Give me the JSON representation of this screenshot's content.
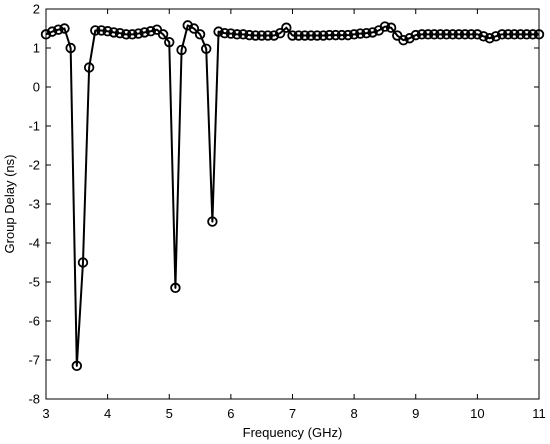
{
  "chart_data": {
    "type": "line",
    "title": "",
    "xlabel": "Frequency (GHz)",
    "ylabel": "Group Delay (ns)",
    "xlim": [
      3,
      11
    ],
    "ylim": [
      -8,
      2
    ],
    "xticks": [
      3,
      4,
      5,
      6,
      7,
      8,
      9,
      10,
      11
    ],
    "yticks": [
      2,
      1,
      0,
      -1,
      -2,
      -3,
      -4,
      -5,
      -6,
      -7,
      -8
    ],
    "grid": false,
    "legend": "none",
    "marker": "circle-open",
    "line_color": "#000000",
    "series": [
      {
        "x": [
          3.0,
          3.1,
          3.2,
          3.3,
          3.4,
          3.5,
          3.6,
          3.7,
          3.8,
          3.9,
          4.0,
          4.1,
          4.2,
          4.3,
          4.4,
          4.5,
          4.6,
          4.7,
          4.8,
          4.9,
          5.0,
          5.1,
          5.2,
          5.3,
          5.4,
          5.5,
          5.6,
          5.7,
          5.8,
          5.9,
          6.0,
          6.1,
          6.2,
          6.3,
          6.4,
          6.5,
          6.6,
          6.7,
          6.8,
          6.9,
          7.0,
          7.1,
          7.2,
          7.3,
          7.4,
          7.5,
          7.6,
          7.7,
          7.8,
          7.9,
          8.0,
          8.1,
          8.2,
          8.3,
          8.4,
          8.5,
          8.6,
          8.7,
          8.8,
          8.9,
          9.0,
          9.1,
          9.2,
          9.3,
          9.4,
          9.5,
          9.6,
          9.7,
          9.8,
          9.9,
          10.0,
          10.1,
          10.2,
          10.3,
          10.4,
          10.5,
          10.6,
          10.7,
          10.8,
          10.9,
          11.0
        ],
        "values": [
          1.35,
          1.42,
          1.47,
          1.5,
          1.0,
          -7.15,
          -4.5,
          0.5,
          1.45,
          1.45,
          1.43,
          1.4,
          1.38,
          1.35,
          1.35,
          1.37,
          1.4,
          1.43,
          1.47,
          1.35,
          1.15,
          -5.15,
          0.95,
          1.58,
          1.5,
          1.35,
          0.98,
          -3.45,
          1.42,
          1.38,
          1.37,
          1.35,
          1.35,
          1.33,
          1.32,
          1.32,
          1.32,
          1.32,
          1.38,
          1.52,
          1.32,
          1.32,
          1.32,
          1.32,
          1.32,
          1.32,
          1.33,
          1.33,
          1.33,
          1.33,
          1.35,
          1.37,
          1.38,
          1.4,
          1.45,
          1.55,
          1.52,
          1.32,
          1.2,
          1.25,
          1.33,
          1.35,
          1.35,
          1.35,
          1.35,
          1.35,
          1.35,
          1.35,
          1.35,
          1.35,
          1.35,
          1.3,
          1.25,
          1.3,
          1.35,
          1.35,
          1.35,
          1.35,
          1.35,
          1.35,
          1.35
        ]
      }
    ]
  }
}
